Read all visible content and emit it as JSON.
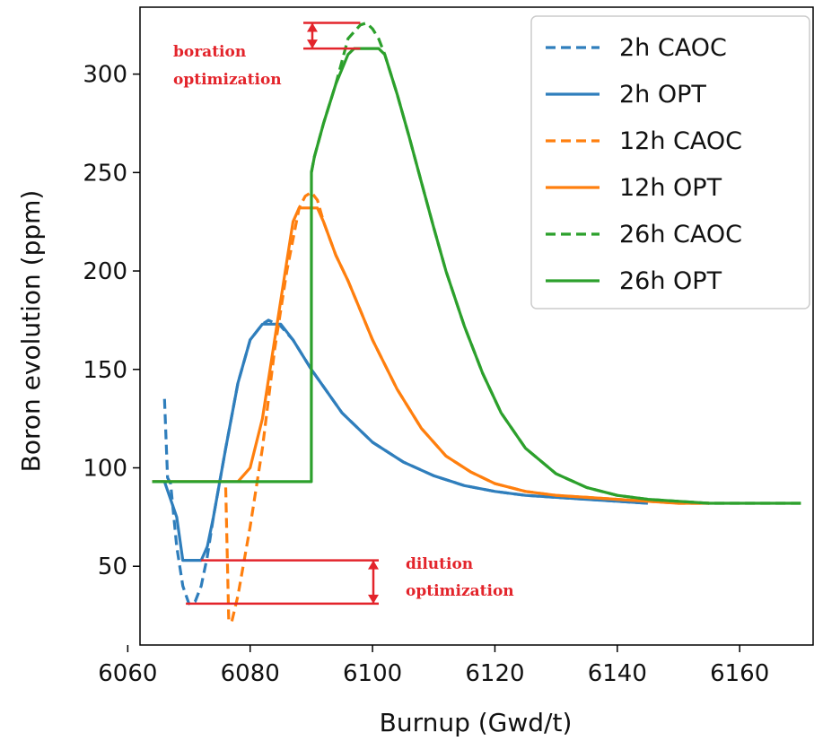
{
  "chart_data": {
    "type": "line",
    "title": "",
    "xlabel": "Burnup (Gwd/t)",
    "ylabel": "Boron evolution (ppm)",
    "xlim": [
      6062,
      6172
    ],
    "ylim": [
      10,
      334
    ],
    "xticks": [
      6060,
      6080,
      6100,
      6120,
      6140,
      6160
    ],
    "yticks": [
      50,
      100,
      150,
      200,
      250,
      300
    ],
    "grid": false,
    "legend_position": "top-right",
    "colors": {
      "blue": "#2f7ebc",
      "orange": "#ff7f0e",
      "green": "#2ca02c",
      "annotation": "#e3242b"
    },
    "series": [
      {
        "name": "2h CAOC",
        "color": "#2f7ebc",
        "dashed": true,
        "x": [
          6066,
          6066.5,
          6067,
          6068,
          6069,
          6070,
          6071,
          6072,
          6073,
          6074,
          6076,
          6078,
          6080,
          6082,
          6083,
          6085,
          6087,
          6090,
          6095,
          6100,
          6105,
          6110,
          6115,
          6120,
          6125,
          6130,
          6135,
          6140,
          6145
        ],
        "y": [
          135,
          95,
          92,
          60,
          40,
          31,
          32,
          40,
          55,
          75,
          110,
          143,
          165,
          173,
          175,
          172,
          165,
          150,
          128,
          113,
          103,
          96,
          91,
          88,
          86,
          85,
          84,
          83,
          82
        ]
      },
      {
        "name": "2h OPT",
        "color": "#2f7ebc",
        "dashed": false,
        "x": [
          6064,
          6066,
          6068,
          6069,
          6070,
          6072,
          6073,
          6074,
          6076,
          6078,
          6080,
          6082,
          6083,
          6085,
          6087,
          6090,
          6095,
          6100,
          6105,
          6110,
          6115,
          6120,
          6125,
          6130,
          6135,
          6140,
          6145
        ],
        "y": [
          93,
          93,
          75,
          53,
          53,
          53,
          60,
          75,
          110,
          143,
          165,
          173,
          173,
          173,
          165,
          150,
          128,
          113,
          103,
          96,
          91,
          88,
          86,
          85,
          84,
          83,
          82
        ]
      },
      {
        "name": "12h CAOC",
        "color": "#ff7f0e",
        "dashed": true,
        "x": [
          6076,
          6076.5,
          6077,
          6078,
          6080,
          6082,
          6084,
          6086,
          6088,
          6089,
          6090,
          6091,
          6092,
          6094,
          6096,
          6098,
          6100,
          6104,
          6108,
          6112,
          6116,
          6120,
          6125,
          6130,
          6135,
          6140,
          6145,
          6150,
          6155
        ],
        "y": [
          90,
          22,
          22,
          35,
          70,
          110,
          160,
          200,
          232,
          238,
          240,
          236,
          225,
          208,
          195,
          180,
          165,
          140,
          120,
          106,
          98,
          92,
          88,
          86,
          85,
          84,
          83,
          82,
          82
        ]
      },
      {
        "name": "12h OPT",
        "color": "#ff7f0e",
        "dashed": false,
        "x": [
          6064,
          6073,
          6076,
          6078,
          6080,
          6082,
          6084,
          6086,
          6087,
          6088,
          6090,
          6091,
          6092,
          6094,
          6096,
          6098,
          6100,
          6104,
          6108,
          6112,
          6116,
          6120,
          6125,
          6130,
          6135,
          6140,
          6145,
          6150,
          6155
        ],
        "y": [
          93,
          93,
          93,
          93,
          100,
          125,
          165,
          205,
          225,
          232,
          232,
          232,
          225,
          208,
          195,
          180,
          165,
          140,
          120,
          106,
          98,
          92,
          88,
          86,
          85,
          84,
          83,
          82,
          82
        ]
      },
      {
        "name": "26h CAOC",
        "color": "#2ca02c",
        "dashed": true,
        "x": [
          6090,
          6090.5,
          6092,
          6094,
          6096,
          6098,
          6099,
          6100,
          6101,
          6102,
          6104,
          6106,
          6108,
          6110,
          6112,
          6115,
          6118,
          6121,
          6125,
          6130,
          6135,
          6140,
          6145,
          6150,
          6155,
          6160,
          6165,
          6170
        ],
        "y": [
          250,
          258,
          275,
          295,
          318,
          325,
          326,
          323,
          318,
          310,
          290,
          268,
          245,
          222,
          200,
          172,
          148,
          128,
          110,
          97,
          90,
          86,
          84,
          83,
          82,
          82,
          82,
          82
        ]
      },
      {
        "name": "26h OPT",
        "color": "#2ca02c",
        "dashed": false,
        "x": [
          6064,
          6090,
          6090.01,
          6090.5,
          6092,
          6094,
          6096,
          6097,
          6099,
          6101,
          6102,
          6104,
          6106,
          6108,
          6110,
          6112,
          6115,
          6118,
          6121,
          6125,
          6130,
          6135,
          6140,
          6145,
          6150,
          6155,
          6160,
          6165,
          6170
        ],
        "y": [
          93,
          93,
          250,
          258,
          275,
          295,
          310,
          313,
          313,
          313,
          310,
          290,
          268,
          245,
          222,
          200,
          172,
          148,
          128,
          110,
          97,
          90,
          86,
          84,
          83,
          82,
          82,
          82,
          82
        ]
      }
    ],
    "annotations": [
      {
        "text_lines": [
          "boration",
          "optimization"
        ],
        "color": "#e3242b"
      },
      {
        "text_lines": [
          "dilution",
          "optimization"
        ],
        "color": "#e3242b"
      }
    ]
  }
}
